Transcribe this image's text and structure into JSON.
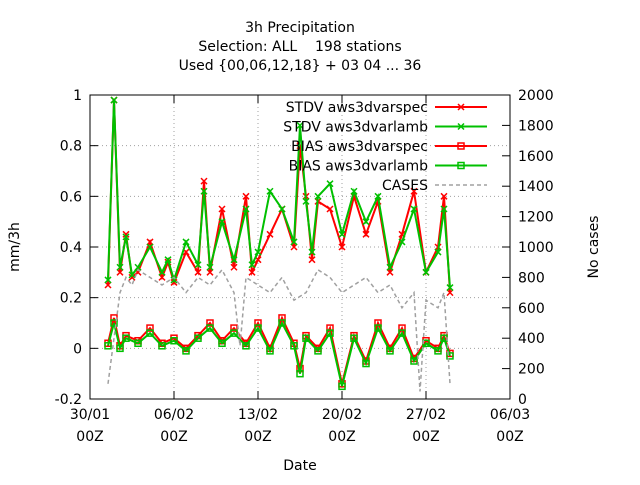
{
  "chart_data": {
    "type": "line",
    "title": "3h Precipitation",
    "subtitle_lines": [
      "Selection: ALL    198 stations",
      "Used {00,06,12,18} + 03 04 ... 36"
    ],
    "xlabel": "Date",
    "ylabel": "mm/3h",
    "y2label": "No cases",
    "ylim": [
      -0.2,
      1
    ],
    "y2lim": [
      0,
      2000
    ],
    "yticks": [
      "-0.2",
      "0",
      "0.2",
      "0.4",
      "0.6",
      "0.8",
      "1"
    ],
    "y2ticks": [
      "0",
      "200",
      "400",
      "600",
      "800",
      "1000",
      "1200",
      "1400",
      "1600",
      "1800",
      "2000"
    ],
    "xticks": [
      {
        "day": 0,
        "line1": "30/01",
        "line2": "00Z"
      },
      {
        "day": 7,
        "line1": "06/02",
        "line2": "00Z"
      },
      {
        "day": 14,
        "line1": "13/02",
        "line2": "00Z"
      },
      {
        "day": 21,
        "line1": "20/02",
        "line2": "00Z"
      },
      {
        "day": 28,
        "line1": "27/02",
        "line2": "00Z"
      },
      {
        "day": 35,
        "line1": "06/03",
        "line2": "00Z"
      }
    ],
    "xrange_days": [
      0,
      35
    ],
    "grid": true,
    "legend_position": "top-right",
    "series": [
      {
        "name": "STDV aws3dvarspec",
        "color": "#ff0000",
        "marker": "x",
        "axis": "y",
        "x": [
          1.5,
          2,
          2.5,
          3,
          3.5,
          4,
          5,
          6,
          6.5,
          7,
          8,
          9,
          9.5,
          10,
          11,
          12,
          13,
          13.5,
          14,
          15,
          16,
          17,
          17.5,
          18,
          18.5,
          19,
          20,
          21,
          22,
          23,
          24,
          25,
          26,
          27,
          28,
          29,
          29.5,
          30
        ],
        "y": [
          0.25,
          0.98,
          0.3,
          0.45,
          0.28,
          0.3,
          0.42,
          0.28,
          0.34,
          0.26,
          0.38,
          0.3,
          0.66,
          0.3,
          0.55,
          0.32,
          0.6,
          0.3,
          0.35,
          0.45,
          0.55,
          0.4,
          0.8,
          0.6,
          0.35,
          0.58,
          0.55,
          0.4,
          0.6,
          0.45,
          0.58,
          0.3,
          0.45,
          0.62,
          0.3,
          0.4,
          0.6,
          0.22
        ]
      },
      {
        "name": "STDV aws3dvarlamb",
        "color": "#00c000",
        "marker": "x",
        "axis": "y",
        "x": [
          1.5,
          2,
          2.5,
          3,
          3.5,
          4,
          5,
          6,
          6.5,
          7,
          8,
          9,
          9.5,
          10,
          11,
          12,
          13,
          13.5,
          14,
          15,
          16,
          17,
          17.5,
          18,
          18.5,
          19,
          20,
          21,
          22,
          23,
          24,
          25,
          26,
          27,
          28,
          29,
          29.5,
          30
        ],
        "y": [
          0.27,
          0.98,
          0.32,
          0.44,
          0.29,
          0.32,
          0.4,
          0.3,
          0.35,
          0.27,
          0.42,
          0.33,
          0.62,
          0.32,
          0.5,
          0.35,
          0.55,
          0.33,
          0.38,
          0.62,
          0.55,
          0.42,
          0.88,
          0.58,
          0.38,
          0.6,
          0.65,
          0.45,
          0.62,
          0.5,
          0.6,
          0.32,
          0.42,
          0.55,
          0.3,
          0.38,
          0.55,
          0.24
        ]
      },
      {
        "name": "BIAS aws3dvarspec",
        "color": "#ff0000",
        "marker": "square",
        "axis": "y",
        "x": [
          1.5,
          2,
          2.5,
          3,
          4,
          5,
          6,
          7,
          8,
          9,
          10,
          11,
          12,
          13,
          14,
          15,
          16,
          17,
          17.5,
          18,
          19,
          20,
          21,
          22,
          23,
          24,
          25,
          26,
          27,
          28,
          29,
          29.5,
          30
        ],
        "y": [
          0.02,
          0.12,
          0.01,
          0.05,
          0.03,
          0.08,
          0.02,
          0.04,
          0.0,
          0.05,
          0.1,
          0.03,
          0.08,
          0.02,
          0.1,
          0.0,
          0.12,
          0.02,
          -0.08,
          0.05,
          0.0,
          0.08,
          -0.14,
          0.05,
          -0.05,
          0.1,
          0.0,
          0.08,
          -0.04,
          0.03,
          0.0,
          0.05,
          -0.02
        ]
      },
      {
        "name": "BIAS aws3dvarlamb",
        "color": "#00c000",
        "marker": "square",
        "axis": "y",
        "x": [
          1.5,
          2,
          2.5,
          3,
          4,
          5,
          6,
          7,
          8,
          9,
          10,
          11,
          12,
          13,
          14,
          15,
          16,
          17,
          17.5,
          18,
          19,
          20,
          21,
          22,
          23,
          24,
          25,
          26,
          27,
          28,
          29,
          29.5,
          30
        ],
        "y": [
          0.01,
          0.1,
          0.0,
          0.04,
          0.02,
          0.06,
          0.01,
          0.03,
          -0.01,
          0.04,
          0.08,
          0.02,
          0.06,
          0.01,
          0.08,
          -0.01,
          0.1,
          0.01,
          -0.1,
          0.04,
          -0.01,
          0.06,
          -0.15,
          0.04,
          -0.06,
          0.08,
          -0.01,
          0.06,
          -0.05,
          0.02,
          -0.01,
          0.04,
          -0.03
        ]
      },
      {
        "name": "CASES",
        "color": "#a0a0a0",
        "marker": "none",
        "axis": "y2",
        "x": [
          1.5,
          2,
          2.5,
          3,
          3.5,
          4,
          5,
          6,
          7,
          8,
          9,
          10,
          11,
          12,
          12.5,
          13,
          14,
          15,
          16,
          17,
          18,
          19,
          20,
          21,
          22,
          23,
          24,
          25,
          26,
          27,
          27.5,
          28,
          29,
          29.5,
          30
        ],
        "y": [
          100,
          400,
          700,
          800,
          750,
          850,
          800,
          750,
          800,
          700,
          800,
          750,
          850,
          700,
          350,
          800,
          750,
          700,
          800,
          650,
          700,
          850,
          800,
          700,
          750,
          800,
          700,
          750,
          600,
          700,
          50,
          650,
          600,
          700,
          100
        ]
      }
    ]
  }
}
